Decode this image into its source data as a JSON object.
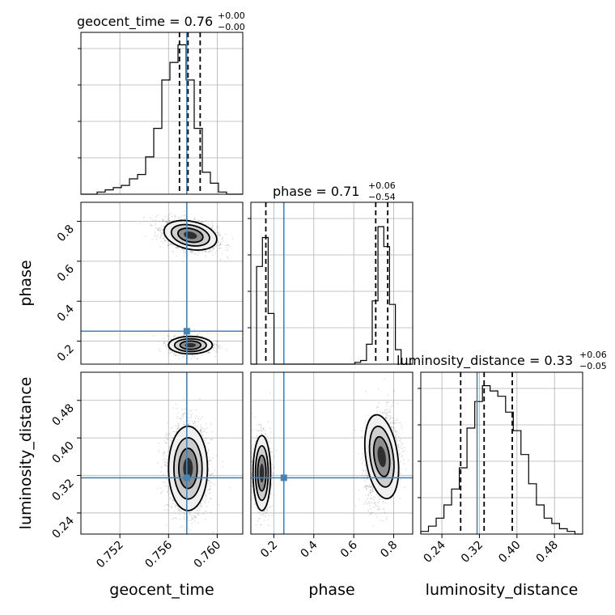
{
  "chart_data": {
    "type": "corner",
    "parameters": [
      "geocent_time",
      "phase",
      "luminosity_distance"
    ],
    "axis_labels": [
      "geocent_time",
      "phase",
      "luminosity_distance"
    ],
    "titles": [
      {
        "name": "geocent_time",
        "value": "0.76",
        "plus": "+0.00",
        "minus": "−0.00"
      },
      {
        "name": "phase",
        "value": "0.71",
        "plus": "+0.06",
        "minus": "−0.54"
      },
      {
        "name": "luminosity_distance",
        "value": "0.33",
        "plus": "+0.06",
        "minus": "−0.05"
      }
    ],
    "ranges": [
      [
        0.7488,
        0.7621
      ],
      [
        0.085,
        0.895
      ],
      [
        0.195,
        0.54
      ]
    ],
    "ticks": [
      {
        "values": [
          0.752,
          0.756,
          0.76
        ],
        "labels": [
          "0.752",
          "0.756",
          "0.760"
        ]
      },
      {
        "values": [
          0.2,
          0.4,
          0.6,
          0.8
        ],
        "labels": [
          "0.2",
          "0.4",
          "0.6",
          "0.8"
        ]
      },
      {
        "values": [
          0.24,
          0.32,
          0.4,
          0.48
        ],
        "labels": [
          "0.24",
          "0.32",
          "0.40",
          "0.48"
        ]
      }
    ],
    "truths": [
      0.7575,
      0.25,
      0.315
    ],
    "truth_color": "#4682b4",
    "quantiles": [
      [
        0.7569,
        0.7576,
        0.7586
      ],
      [
        0.16,
        0.71,
        0.77
      ],
      [
        0.28,
        0.33,
        0.39
      ]
    ],
    "histograms": [
      {
        "counts": [
          0,
          0,
          1,
          2,
          3,
          4,
          7,
          9,
          17,
          30,
          52,
          60,
          68,
          52,
          30,
          10,
          5,
          1,
          0,
          0
        ]
      },
      {
        "counts": [
          0,
          54,
          70,
          28,
          0,
          0,
          0,
          0,
          0,
          0,
          0,
          0,
          0,
          0,
          0,
          0,
          0,
          0,
          1,
          2,
          11,
          35,
          76,
          65,
          33,
          8,
          0,
          0
        ]
      },
      {
        "counts": [
          1,
          3,
          6,
          11,
          17,
          25,
          40,
          50,
          56,
          54,
          52,
          46,
          39,
          30,
          19,
          11,
          6,
          4,
          2,
          1,
          0
        ]
      }
    ],
    "hist_ymax": [
      70,
      85,
      58
    ],
    "grid": true
  }
}
